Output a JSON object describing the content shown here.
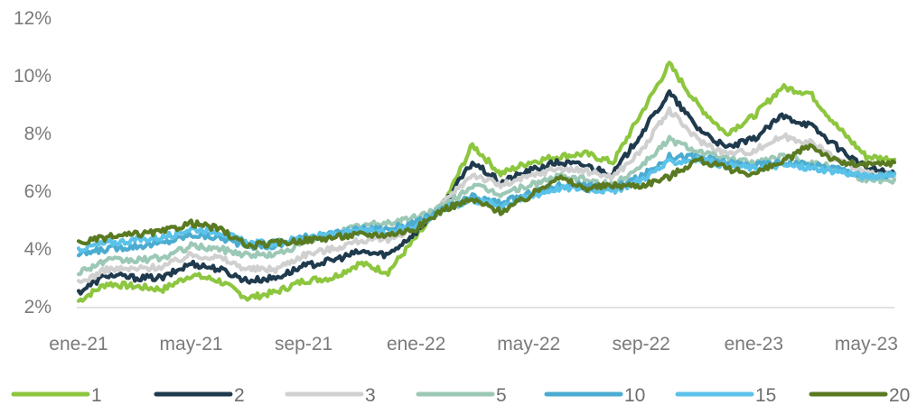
{
  "chart_data": {
    "type": "line",
    "title": "",
    "xlabel": "",
    "ylabel": "",
    "ylim": [
      2,
      12
    ],
    "yticks": [
      2,
      4,
      6,
      8,
      10,
      12
    ],
    "ytick_labels": [
      "2%",
      "4%",
      "6%",
      "8%",
      "10%",
      "12%"
    ],
    "xlim": [
      0,
      29
    ],
    "xticks": [
      0,
      4,
      8,
      12,
      16,
      20,
      24,
      28
    ],
    "xtick_labels": [
      "ene-21",
      "may-21",
      "sep-21",
      "ene-22",
      "may-22",
      "sep-22",
      "ene-23",
      "may-23"
    ],
    "grid": false,
    "legend_position": "bottom",
    "x": [
      "ene-21",
      "feb-21",
      "mar-21",
      "abr-21",
      "may-21",
      "jun-21",
      "jul-21",
      "ago-21",
      "sep-21",
      "oct-21",
      "nov-21",
      "dic-21",
      "ene-22",
      "feb-22",
      "mar-22",
      "abr-22",
      "may-22",
      "jun-22",
      "jul-22",
      "ago-22",
      "sep-22",
      "oct-22",
      "nov-22",
      "dic-22",
      "ene-23",
      "feb-23",
      "mar-23",
      "abr-23",
      "may-23",
      "jun-23"
    ],
    "series": [
      {
        "name": "1",
        "color": "#8dc63f",
        "values": [
          2.2,
          2.8,
          2.7,
          2.6,
          3.1,
          2.9,
          2.3,
          2.5,
          2.9,
          3.0,
          3.5,
          3.2,
          4.4,
          5.6,
          7.6,
          6.6,
          7.0,
          7.2,
          7.3,
          7.0,
          8.7,
          10.4,
          9.0,
          8.0,
          8.6,
          9.6,
          9.4,
          8.2,
          7.2,
          7.1
        ]
      },
      {
        "name": "2",
        "color": "#1f3a4d",
        "values": [
          2.5,
          3.1,
          3.0,
          3.0,
          3.5,
          3.3,
          2.9,
          3.0,
          3.4,
          3.6,
          3.9,
          3.8,
          4.6,
          5.6,
          7.0,
          6.3,
          6.7,
          7.0,
          6.9,
          6.6,
          8.0,
          9.4,
          8.2,
          7.5,
          7.8,
          8.6,
          8.3,
          7.5,
          6.8,
          6.6
        ]
      },
      {
        "name": "3",
        "color": "#d0d0d0",
        "values": [
          2.8,
          3.3,
          3.3,
          3.4,
          3.8,
          3.7,
          3.3,
          3.3,
          3.8,
          4.0,
          4.3,
          4.3,
          4.8,
          5.6,
          6.6,
          6.2,
          6.5,
          6.8,
          6.7,
          6.5,
          7.4,
          8.8,
          7.8,
          7.3,
          7.4,
          7.9,
          7.7,
          7.1,
          6.6,
          6.5
        ]
      },
      {
        "name": "5",
        "color": "#9cc8b6",
        "values": [
          3.2,
          3.6,
          3.6,
          3.7,
          4.1,
          4.0,
          3.8,
          3.8,
          4.2,
          4.5,
          4.8,
          4.9,
          5.1,
          5.5,
          6.2,
          5.9,
          6.2,
          6.5,
          6.4,
          6.2,
          6.9,
          7.8,
          7.4,
          7.1,
          7.0,
          7.2,
          7.0,
          6.8,
          6.4,
          6.4
        ]
      },
      {
        "name": "10",
        "color": "#4bacd0",
        "values": [
          3.8,
          4.0,
          4.1,
          4.2,
          4.5,
          4.4,
          4.1,
          4.1,
          4.4,
          4.5,
          4.7,
          4.7,
          4.9,
          5.4,
          5.8,
          5.6,
          5.9,
          6.2,
          6.2,
          6.1,
          6.5,
          7.2,
          7.2,
          7.0,
          6.9,
          7.0,
          6.9,
          6.8,
          6.5,
          6.6
        ]
      },
      {
        "name": "15",
        "color": "#5bc2ea",
        "values": [
          4.0,
          4.2,
          4.3,
          4.4,
          4.7,
          4.6,
          4.2,
          4.2,
          4.4,
          4.5,
          4.6,
          4.6,
          4.8,
          5.4,
          5.7,
          5.5,
          5.8,
          6.1,
          6.1,
          6.0,
          6.4,
          7.0,
          7.1,
          6.9,
          6.8,
          6.9,
          6.8,
          6.7,
          6.5,
          6.6
        ]
      },
      {
        "name": "20",
        "color": "#5a7a22",
        "values": [
          4.2,
          4.4,
          4.5,
          4.6,
          4.9,
          4.7,
          4.1,
          4.2,
          4.3,
          4.4,
          4.5,
          4.5,
          4.7,
          5.4,
          5.7,
          5.3,
          5.8,
          6.5,
          6.1,
          6.2,
          6.2,
          6.5,
          7.1,
          6.8,
          6.6,
          7.0,
          7.6,
          7.0,
          6.9,
          7.0
        ]
      }
    ]
  }
}
